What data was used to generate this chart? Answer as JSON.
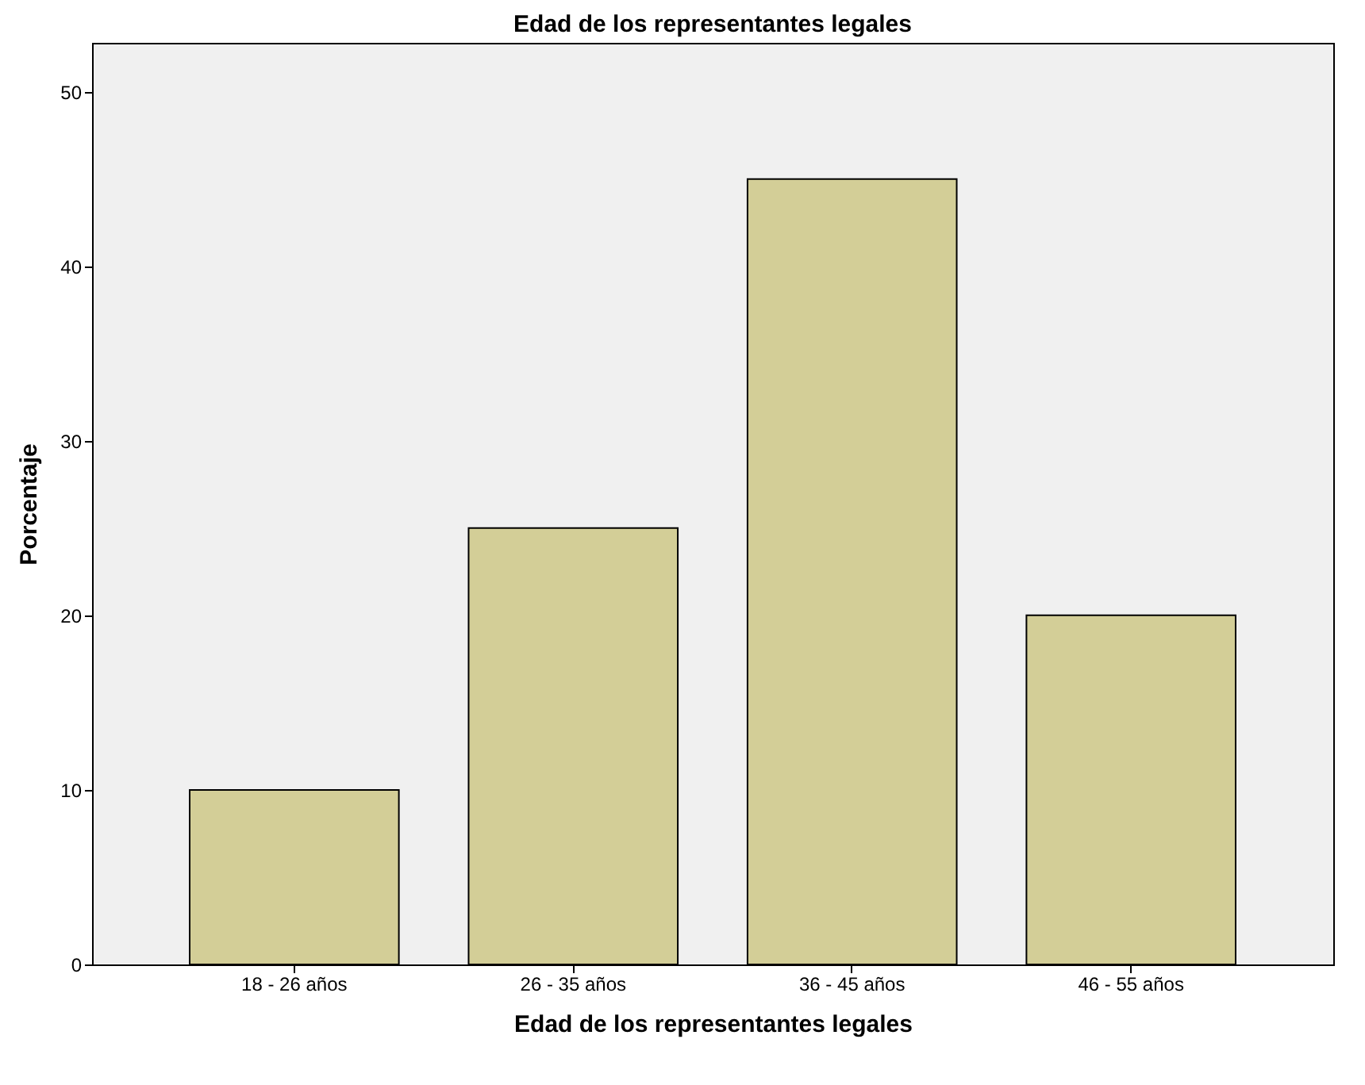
{
  "chart_data": {
    "type": "bar",
    "title": "Edad de los representantes legales",
    "xlabel": "Edad de los representantes legales",
    "ylabel": "Porcentaje",
    "categories": [
      "18 - 26 años",
      "26 - 35 años",
      "36 - 45 años",
      "46 - 55 años"
    ],
    "values": [
      10,
      25,
      45,
      20
    ],
    "color": "#d3ce97",
    "ylim": [
      0,
      52.8
    ],
    "yticks": [
      0,
      10,
      20,
      30,
      40,
      50
    ],
    "grid": false
  }
}
